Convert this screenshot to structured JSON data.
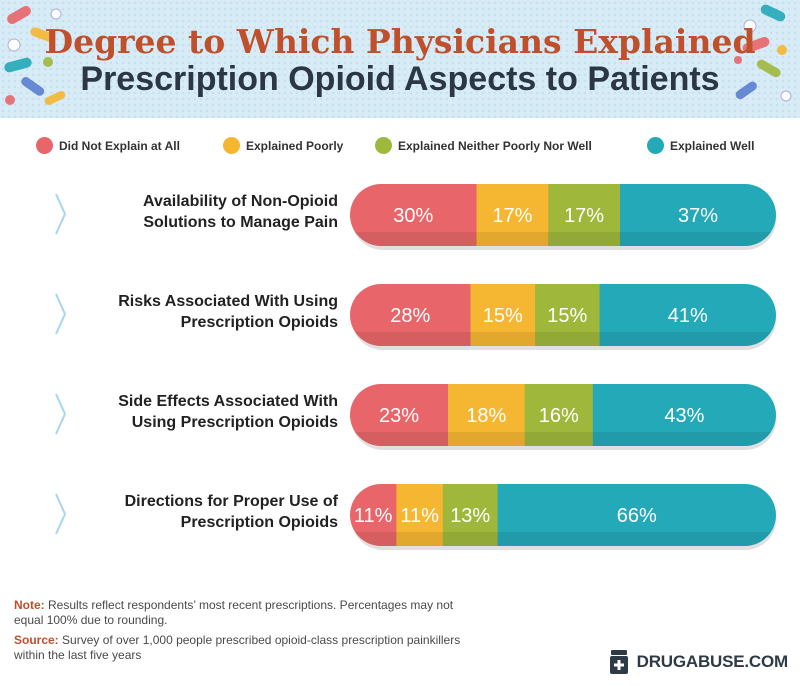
{
  "header": {
    "title_line1": "Degree to Which Physicians Explained",
    "title_line2": "Prescription Opioid Aspects to Patients"
  },
  "colors": {
    "header_bg": "#d8ecf7",
    "title_accent": "#c0502b",
    "did_not_explain": "#e8666a",
    "explained_poorly": "#f5b731",
    "neither": "#9fb83c",
    "explained_well": "#24a9b8",
    "chevron": "#a6d6f0"
  },
  "legend": [
    {
      "label": "Did Not Explain at All",
      "color": "#e8666a"
    },
    {
      "label": "Explained Poorly",
      "color": "#f5b731"
    },
    {
      "label": "Explained Neither Poorly Nor Well",
      "color": "#9fb83c"
    },
    {
      "label": "Explained Well",
      "color": "#24a9b8"
    }
  ],
  "chart_data": {
    "type": "bar",
    "orientation": "horizontal",
    "stacked": true,
    "title": "Degree to Which Physicians Explained Prescription Opioid Aspects to Patients",
    "unit": "%",
    "categories": [
      [
        "Availability of Non-Opioid",
        "Solutions to Manage Pain"
      ],
      [
        "Risks Associated With Using",
        "Prescription Opioids"
      ],
      [
        "Side Effects Associated With",
        "Using Prescription Opioids"
      ],
      [
        "Directions for Proper Use of",
        "Prescription Opioids"
      ]
    ],
    "series": [
      {
        "name": "Did Not Explain at All",
        "values": [
          30,
          28,
          23,
          11
        ]
      },
      {
        "name": "Explained Poorly",
        "values": [
          17,
          15,
          18,
          11
        ]
      },
      {
        "name": "Explained Neither Poorly Nor Well",
        "values": [
          17,
          15,
          16,
          13
        ]
      },
      {
        "name": "Explained Well",
        "values": [
          37,
          41,
          43,
          66
        ]
      }
    ],
    "labels": [
      [
        "30%",
        "17%",
        "17%",
        "37%"
      ],
      [
        "28%",
        "15%",
        "15%",
        "41%"
      ],
      [
        "23%",
        "18%",
        "16%",
        "43%"
      ],
      [
        "11%",
        "11%",
        "13%",
        "66%"
      ]
    ]
  },
  "footnotes": {
    "note_key": "Note:",
    "note_text": " Results reflect respondents’ most recent prescriptions. Percentages may not equal 100% due to rounding.",
    "source_key": "Source:",
    "source_text": " Survey of over 1,000 people prescribed opioid-class prescription painkillers within the last five years"
  },
  "brand": {
    "name": "DRUGABUSE.COM",
    "icon": "medicine-bottle-icon"
  }
}
